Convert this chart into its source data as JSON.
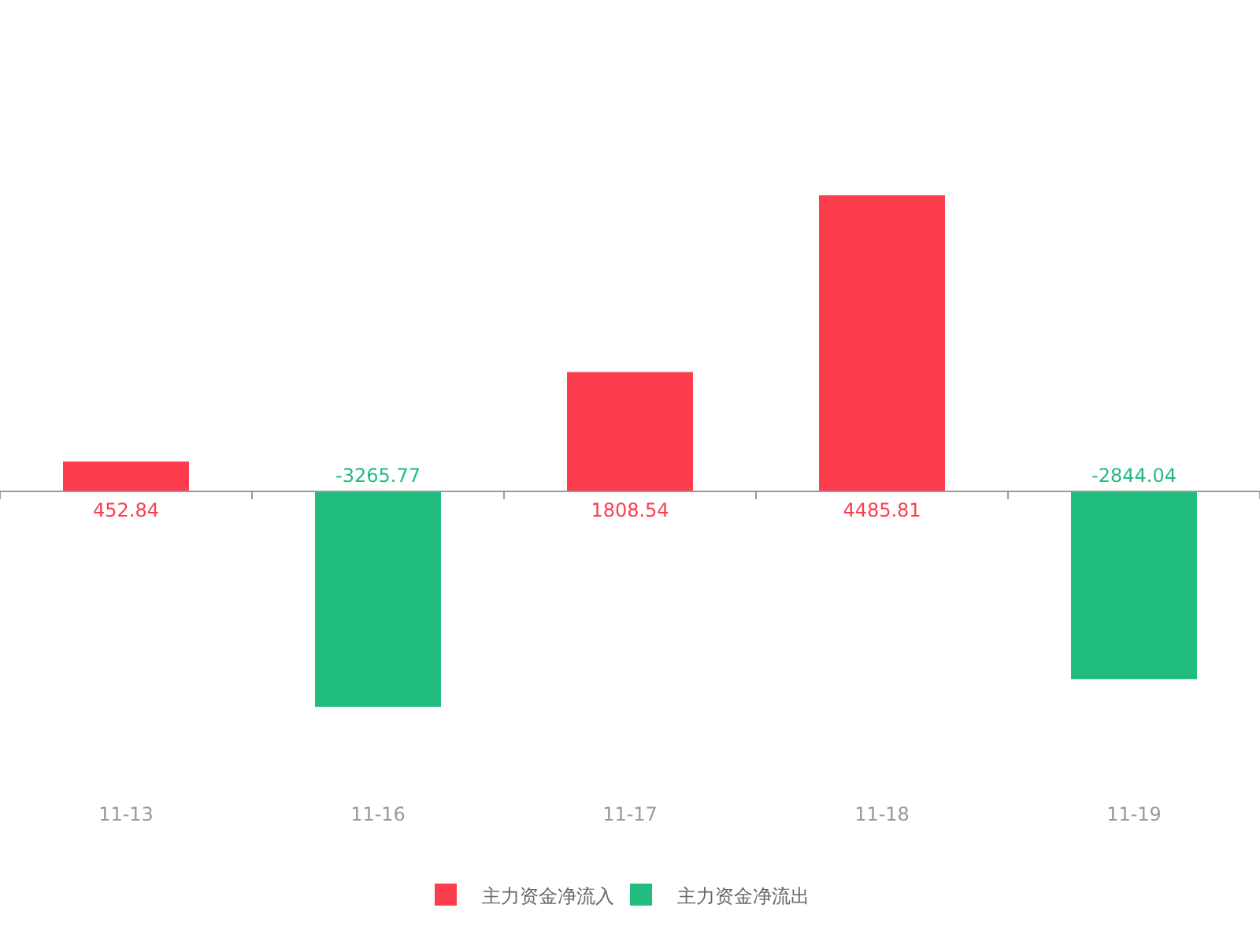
{
  "chart_data": {
    "type": "bar",
    "categories": [
      "11-13",
      "11-16",
      "11-17",
      "11-18",
      "11-19"
    ],
    "series": [
      {
        "name": "主力资金净流入",
        "color": "#fc3d4d",
        "values": [
          452.84,
          null,
          1808.54,
          4485.81,
          null
        ]
      },
      {
        "name": "主力资金净流出",
        "color": "#21bd7f",
        "values": [
          null,
          -3265.77,
          null,
          null,
          -2844.04
        ]
      }
    ],
    "data_labels": true,
    "legend": "bottom"
  }
}
